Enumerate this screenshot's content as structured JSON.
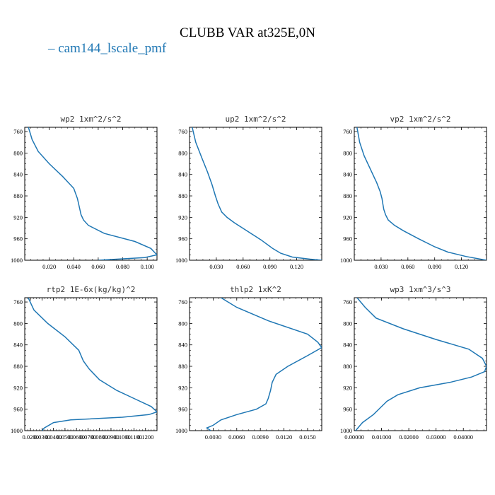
{
  "figure": {
    "title": "CLUBB VAR at325E,0N",
    "legend_label": "cam144_lscale_pmf",
    "series_color": "#1f77b4"
  },
  "chart_data": [
    {
      "type": "line",
      "title": "wp2   1xm^2/s^2",
      "xlim": [
        0.0,
        0.108
      ],
      "ylim": [
        1000,
        752
      ],
      "xticks": [
        0.02,
        0.04,
        0.06,
        0.08,
        0.1
      ],
      "xtick_labels": [
        "0.020",
        "0.040",
        "0.060",
        "0.080",
        "0.100"
      ],
      "yticks": [
        760,
        800,
        840,
        880,
        920,
        960,
        1000
      ],
      "ytick_labels": [
        "760",
        "800",
        "840",
        "880",
        "920",
        "960",
        "1000"
      ],
      "series": [
        {
          "x": [
            0.003,
            0.006,
            0.011,
            0.02,
            0.031,
            0.04,
            0.043,
            0.045,
            0.046,
            0.048,
            0.052,
            0.065,
            0.09,
            0.103,
            0.108,
            0.098,
            0.06
          ],
          "y": [
            752,
            775,
            797,
            820,
            844,
            866,
            885,
            905,
            915,
            925,
            935,
            950,
            965,
            978,
            990,
            995,
            1000
          ]
        }
      ]
    },
    {
      "type": "line",
      "title": "up2   1xm^2/s^2",
      "xlim": [
        0.0,
        0.148
      ],
      "ylim": [
        1000,
        752
      ],
      "xticks": [
        0.03,
        0.06,
        0.09,
        0.12
      ],
      "xtick_labels": [
        "0.030",
        "0.060",
        "0.090",
        "0.120"
      ],
      "yticks": [
        760,
        800,
        840,
        880,
        920,
        960,
        1000
      ],
      "ytick_labels": [
        "760",
        "800",
        "840",
        "880",
        "920",
        "960",
        "1000"
      ],
      "series": [
        {
          "x": [
            0.003,
            0.007,
            0.014,
            0.02,
            0.025,
            0.029,
            0.032,
            0.036,
            0.042,
            0.05,
            0.064,
            0.08,
            0.093,
            0.102,
            0.115,
            0.135,
            0.148
          ],
          "y": [
            752,
            780,
            810,
            835,
            858,
            880,
            895,
            910,
            920,
            930,
            945,
            962,
            978,
            987,
            994,
            998,
            1000
          ]
        }
      ]
    },
    {
      "type": "line",
      "title": "vp2   1xm^2/s^2",
      "xlim": [
        0.0,
        0.148
      ],
      "ylim": [
        1000,
        752
      ],
      "xticks": [
        0.03,
        0.06,
        0.09,
        0.12
      ],
      "xtick_labels": [
        "0.030",
        "0.060",
        "0.090",
        "0.120"
      ],
      "yticks": [
        760,
        800,
        840,
        880,
        920,
        960,
        1000
      ],
      "ytick_labels": [
        "760",
        "800",
        "840",
        "880",
        "920",
        "960",
        "1000"
      ],
      "series": [
        {
          "x": [
            0.003,
            0.006,
            0.011,
            0.018,
            0.025,
            0.029,
            0.031,
            0.032,
            0.033,
            0.035,
            0.038,
            0.045,
            0.055,
            0.072,
            0.09,
            0.105,
            0.125,
            0.148
          ],
          "y": [
            752,
            780,
            805,
            830,
            855,
            872,
            885,
            895,
            905,
            915,
            925,
            935,
            945,
            960,
            975,
            985,
            993,
            1000
          ]
        }
      ]
    },
    {
      "type": "line",
      "title": "rtp2   1E-6x(kg/kg)^2",
      "xlim": [
        0.015,
        0.13
      ],
      "ylim": [
        1000,
        752
      ],
      "xticks": [
        0.02,
        0.03,
        0.04,
        0.05,
        0.06,
        0.07,
        0.08,
        0.09,
        0.1,
        0.11,
        0.12
      ],
      "xtick_labels": [
        "0.0200",
        "0.0300",
        "0.0400",
        "0.0500",
        "0.0600",
        "0.0700",
        "0.0800",
        "0.0900",
        "0.1000",
        "0.1100",
        "0.1200"
      ],
      "yticks": [
        760,
        800,
        840,
        880,
        920,
        960,
        1000
      ],
      "ytick_labels": [
        "760",
        "800",
        "840",
        "880",
        "920",
        "960",
        "1000"
      ],
      "series": [
        {
          "x": [
            0.018,
            0.023,
            0.035,
            0.05,
            0.062,
            0.066,
            0.071,
            0.08,
            0.095,
            0.11,
            0.125,
            0.13,
            0.123,
            0.1,
            0.055,
            0.04,
            0.032,
            0.03
          ],
          "y": [
            752,
            775,
            800,
            825,
            850,
            870,
            885,
            905,
            925,
            940,
            955,
            965,
            970,
            975,
            980,
            985,
            995,
            1000
          ]
        }
      ]
    },
    {
      "type": "line",
      "title": "thlp2   1xK^2",
      "xlim": [
        0.0,
        0.0168
      ],
      "ylim": [
        1000,
        752
      ],
      "xticks": [
        0.003,
        0.006,
        0.009,
        0.012,
        0.015
      ],
      "xtick_labels": [
        "0.0030",
        "0.0060",
        "0.0090",
        "0.0120",
        "0.0150"
      ],
      "yticks": [
        760,
        800,
        840,
        880,
        920,
        960,
        1000
      ],
      "ytick_labels": [
        "760",
        "800",
        "840",
        "880",
        "920",
        "960",
        "1000"
      ],
      "series": [
        {
          "x": [
            0.004,
            0.006,
            0.01,
            0.015,
            0.0163,
            0.0168,
            0.015,
            0.0125,
            0.011,
            0.0105,
            0.0103,
            0.01,
            0.0097,
            0.0085,
            0.006,
            0.004,
            0.003,
            0.0022,
            0.0027
          ],
          "y": [
            752,
            770,
            795,
            820,
            835,
            845,
            860,
            880,
            895,
            910,
            925,
            940,
            950,
            960,
            970,
            980,
            990,
            995,
            1000
          ]
        }
      ]
    },
    {
      "type": "line",
      "title": "wp3   1xm^3/s^3",
      "xlim": [
        0.0,
        0.0485
      ],
      "ylim": [
        1000,
        752
      ],
      "xticks": [
        0.0,
        0.01,
        0.02,
        0.03,
        0.04
      ],
      "xtick_labels": [
        "0.00000",
        "0.01000",
        "0.02000",
        "0.03000",
        "0.04000"
      ],
      "yticks": [
        760,
        800,
        840,
        880,
        920,
        960,
        1000
      ],
      "ytick_labels": [
        "760",
        "800",
        "840",
        "880",
        "920",
        "960",
        "1000"
      ],
      "series": [
        {
          "x": [
            0.001,
            0.004,
            0.008,
            0.018,
            0.03,
            0.042,
            0.047,
            0.0485,
            0.0478,
            0.043,
            0.035,
            0.024,
            0.016,
            0.012,
            0.01,
            0.007,
            0.003,
            0.0005
          ],
          "y": [
            752,
            770,
            790,
            810,
            830,
            848,
            865,
            880,
            890,
            900,
            910,
            920,
            933,
            945,
            955,
            970,
            985,
            1000
          ]
        }
      ]
    }
  ]
}
